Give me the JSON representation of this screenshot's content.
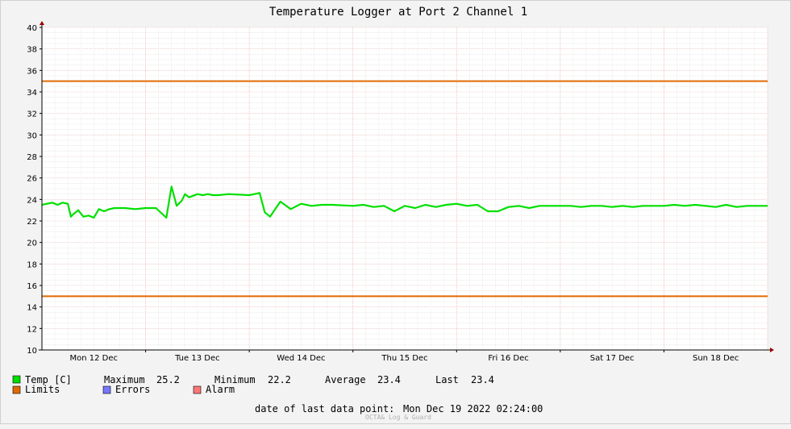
{
  "chart_data": {
    "type": "line",
    "title": "Temperature Logger at Port 2 Channel 1",
    "ylim": [
      10,
      40
    ],
    "y_ticks": [
      10,
      12,
      14,
      16,
      18,
      20,
      22,
      24,
      26,
      28,
      30,
      32,
      34,
      36,
      38,
      40
    ],
    "x_ticks": [
      "Mon 12 Dec",
      "Tue 13 Dec",
      "Wed 14 Dec",
      "Thu 15 Dec",
      "Fri 16 Dec",
      "Sat 17 Dec",
      "Sun 18 Dec"
    ],
    "x_range_days": [
      0,
      7
    ],
    "grid": true,
    "series": [
      {
        "name": "Temp [C]",
        "color": "#00e000",
        "x_days": [
          0.0,
          0.1,
          0.15,
          0.2,
          0.25,
          0.28,
          0.3,
          0.35,
          0.4,
          0.45,
          0.5,
          0.55,
          0.6,
          0.65,
          0.7,
          0.8,
          0.9,
          1.0,
          1.1,
          1.2,
          1.25,
          1.3,
          1.32,
          1.35,
          1.38,
          1.42,
          1.5,
          1.55,
          1.6,
          1.65,
          1.7,
          1.8,
          2.0,
          2.1,
          2.15,
          2.2,
          2.3,
          2.4,
          2.5,
          2.6,
          2.7,
          2.8,
          3.0,
          3.1,
          3.2,
          3.3,
          3.4,
          3.5,
          3.6,
          3.7,
          3.8,
          3.9,
          4.0,
          4.1,
          4.2,
          4.3,
          4.4,
          4.5,
          4.6,
          4.7,
          4.8,
          4.9,
          5.0,
          5.1,
          5.2,
          5.3,
          5.4,
          5.5,
          5.6,
          5.7,
          5.8,
          5.9,
          6.0,
          6.1,
          6.2,
          6.3,
          6.4,
          6.5,
          6.6,
          6.7,
          6.8,
          6.9,
          7.0
        ],
        "values": [
          23.5,
          23.7,
          23.5,
          23.7,
          23.6,
          22.4,
          22.6,
          23.0,
          22.4,
          22.5,
          22.3,
          23.1,
          22.9,
          23.1,
          23.2,
          23.2,
          23.1,
          23.2,
          23.2,
          22.3,
          25.2,
          23.4,
          23.6,
          23.9,
          24.5,
          24.2,
          24.5,
          24.4,
          24.5,
          24.4,
          24.4,
          24.5,
          24.4,
          24.6,
          22.8,
          22.4,
          23.8,
          23.1,
          23.6,
          23.4,
          23.5,
          23.5,
          23.4,
          23.5,
          23.3,
          23.4,
          22.9,
          23.4,
          23.2,
          23.5,
          23.3,
          23.5,
          23.6,
          23.4,
          23.5,
          22.9,
          22.9,
          23.3,
          23.4,
          23.2,
          23.4,
          23.4,
          23.4,
          23.4,
          23.3,
          23.4,
          23.4,
          23.3,
          23.4,
          23.3,
          23.4,
          23.4,
          23.4,
          23.5,
          23.4,
          23.5,
          23.4,
          23.3,
          23.5,
          23.3,
          23.4,
          23.4,
          23.4
        ]
      },
      {
        "name": "Limits",
        "color": "#e06a00",
        "values": [
          15,
          35
        ]
      }
    ],
    "legend": [
      {
        "label": "Temp [C]",
        "color": "#00e000"
      },
      {
        "label": "Limits",
        "color": "#e06a00"
      },
      {
        "label": "Errors",
        "color": "#7777ff"
      },
      {
        "label": "Alarm",
        "color": "#ff7777"
      }
    ],
    "stats": {
      "maximum_label": "Maximum",
      "maximum": "25.2",
      "minimum_label": "Minimum",
      "minimum": "22.2",
      "average_label": "Average",
      "average": "23.4",
      "last_label": "Last",
      "last": "23.4"
    },
    "footer": {
      "label": "date of last data point:",
      "value": "Mon Dec 19 2022 02:24:00"
    },
    "credit": "OCTA& Log & Guard"
  }
}
